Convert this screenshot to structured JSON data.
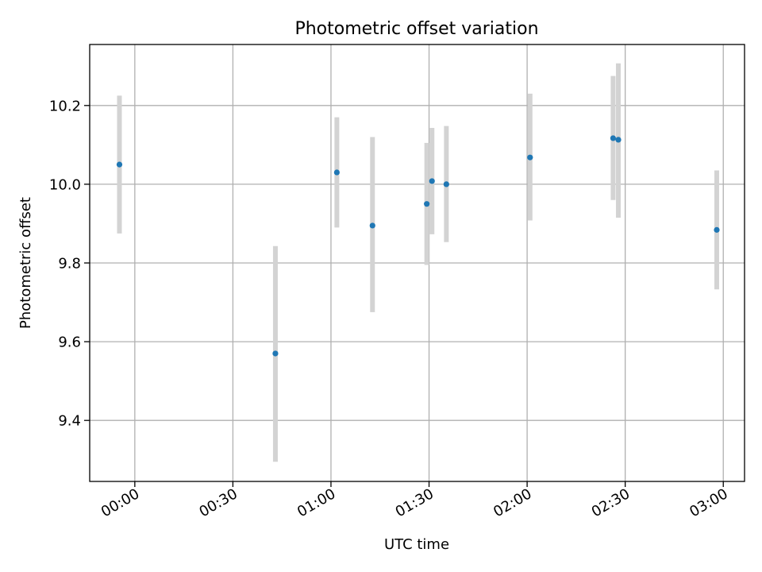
{
  "chart_data": {
    "type": "scatter",
    "title": "Photometric offset variation",
    "xlabel": "UTC time",
    "ylabel": "Photometric offset",
    "x_unit": "minutes",
    "xlim": [
      -13.8,
      186.5
    ],
    "ylim": [
      9.245,
      10.355
    ],
    "xticks": [
      {
        "value": 0,
        "label": "00:00"
      },
      {
        "value": 30,
        "label": "00:30"
      },
      {
        "value": 60,
        "label": "01:00"
      },
      {
        "value": 90,
        "label": "01:30"
      },
      {
        "value": 120,
        "label": "02:00"
      },
      {
        "value": 150,
        "label": "02:30"
      },
      {
        "value": 180,
        "label": "03:00"
      }
    ],
    "yticks": [
      {
        "value": 9.4,
        "label": "9.4"
      },
      {
        "value": 9.6,
        "label": "9.6"
      },
      {
        "value": 9.8,
        "label": "9.8"
      },
      {
        "value": 10.0,
        "label": "10.0"
      },
      {
        "value": 10.2,
        "label": "10.2"
      }
    ],
    "grid": true,
    "points": [
      {
        "x": -4.7,
        "y": 10.05,
        "err_low": 9.875,
        "err_high": 10.225
      },
      {
        "x": 43.0,
        "y": 9.57,
        "err_low": 9.295,
        "err_high": 9.843
      },
      {
        "x": 61.8,
        "y": 10.03,
        "err_low": 9.89,
        "err_high": 10.17
      },
      {
        "x": 72.7,
        "y": 9.895,
        "err_low": 9.675,
        "err_high": 10.12
      },
      {
        "x": 89.3,
        "y": 9.95,
        "err_low": 9.795,
        "err_high": 10.105
      },
      {
        "x": 90.9,
        "y": 10.008,
        "err_low": 9.873,
        "err_high": 10.143
      },
      {
        "x": 95.3,
        "y": 10.0,
        "err_low": 9.853,
        "err_high": 10.148
      },
      {
        "x": 120.9,
        "y": 10.068,
        "err_low": 9.908,
        "err_high": 10.23
      },
      {
        "x": 146.3,
        "y": 10.117,
        "err_low": 9.96,
        "err_high": 10.275
      },
      {
        "x": 147.9,
        "y": 10.113,
        "err_low": 9.915,
        "err_high": 10.307
      },
      {
        "x": 178.0,
        "y": 9.884,
        "err_low": 9.733,
        "err_high": 10.035
      }
    ],
    "colors": {
      "point": "#1f77b4",
      "errorbar": "#d3d3d3",
      "grid": "#b0b0b0",
      "axis": "#000000"
    }
  }
}
